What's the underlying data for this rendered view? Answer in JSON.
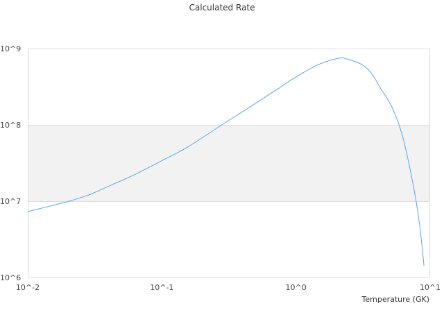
{
  "chart_data": {
    "type": "line",
    "title": "Calculated Rate",
    "xlabel": "Temperature (GK)",
    "ylabel": "",
    "xscale": "log",
    "yscale": "log",
    "xlim": [
      0.01,
      10
    ],
    "ylim": [
      1000000,
      1000000000
    ],
    "x_tick_labels": [
      "10^-2",
      "10^-1",
      "10^0",
      "10^1"
    ],
    "y_tick_labels": [
      "10^6",
      "10^7",
      "10^8",
      "10^9"
    ],
    "grid": "alternating horizontal bands",
    "band_color": "#f2f2f2",
    "line_color": "#5aa3ee",
    "series": [
      {
        "x": [
          0.01,
          0.0161,
          0.0204,
          0.0292,
          0.0417,
          0.0616,
          0.1,
          0.155,
          0.28,
          0.45,
          0.73,
          0.99,
          1.48,
          2.1,
          2.39,
          3.03,
          3.6,
          4.3,
          5.2,
          6.2,
          7.4,
          8.3,
          9.0
        ],
        "y": [
          7300000,
          9000000,
          10000000,
          12300000,
          16200000,
          22000000,
          34000000,
          51000000,
          100000000,
          170000000,
          296000000,
          420000000,
          620000000,
          750000000,
          730000000,
          630000000,
          490000000,
          296000000,
          170000000,
          73000000,
          18000000,
          5300000,
          1430000
        ]
      }
    ]
  }
}
